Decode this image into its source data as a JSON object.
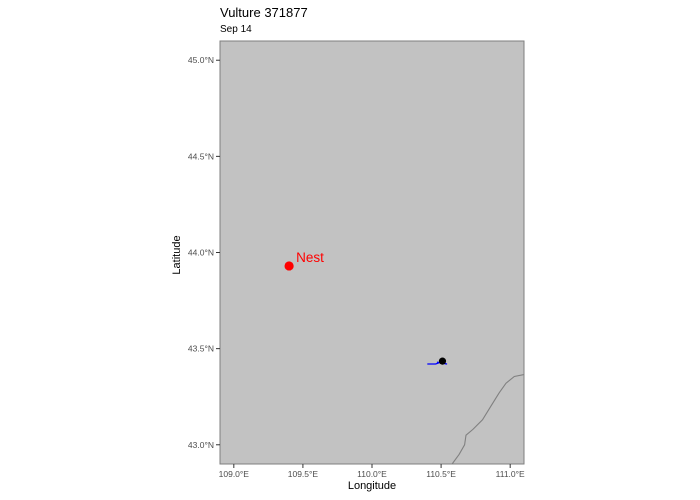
{
  "title": "Vulture 371877",
  "subtitle": "Sep 14",
  "chart_data": {
    "type": "map",
    "title": "Vulture 371877",
    "subtitle": "Sep 14",
    "xlabel": "Longitude",
    "ylabel": "Latitude",
    "xlim": [
      108.9,
      111.1
    ],
    "ylim": [
      42.9,
      45.1
    ],
    "x_ticks": [
      109.0,
      109.5,
      110.0,
      110.5,
      111.0
    ],
    "x_tick_labels": [
      "109.0°E",
      "109.5°E",
      "110.0°E",
      "110.5°E",
      "111.0°E"
    ],
    "y_ticks": [
      43.0,
      43.5,
      44.0,
      44.5,
      45.0
    ],
    "y_tick_labels": [
      "43.0°N",
      "43.5°N",
      "44.0°N",
      "44.5°N",
      "45.0°N"
    ],
    "land_color": "#c2c2c2",
    "border_color": "#808080",
    "nest": {
      "lon": 109.4,
      "lat": 43.93,
      "label": "Nest",
      "color": "#ff0000"
    },
    "track": {
      "color": "#0000ff",
      "points": [
        [
          110.4,
          43.42
        ],
        [
          110.46,
          43.42
        ],
        [
          110.5,
          43.43
        ],
        [
          110.54,
          43.42
        ],
        [
          110.47,
          43.43
        ]
      ]
    },
    "current_position": {
      "lon": 110.51,
      "lat": 43.435,
      "color": "#000000"
    },
    "border_line": [
      [
        110.58,
        42.9
      ],
      [
        110.63,
        42.95
      ],
      [
        110.67,
        43.0
      ],
      [
        110.68,
        43.05
      ],
      [
        110.73,
        43.08
      ],
      [
        110.8,
        43.13
      ],
      [
        110.86,
        43.2
      ],
      [
        110.92,
        43.27
      ],
      [
        110.97,
        43.32
      ],
      [
        111.03,
        43.355
      ],
      [
        111.1,
        43.365
      ]
    ]
  }
}
